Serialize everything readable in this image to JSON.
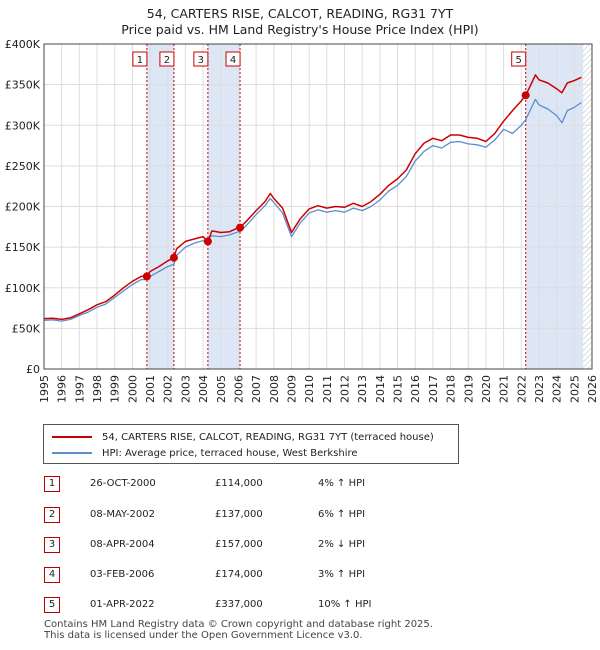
{
  "header": {
    "title": "54, CARTERS RISE, CALCOT, READING, RG31 7YT",
    "subtitle": "Price paid vs. HM Land Registry's House Price Index (HPI)"
  },
  "legend": {
    "property_label": "54, CARTERS RISE, CALCOT, READING, RG31 7YT (terraced house)",
    "hpi_label": "HPI: Average price, terraced house, West Berkshire"
  },
  "transactions": [
    {
      "num": "1",
      "date": "26-OCT-2000",
      "price": "£114,000",
      "hpi": "4% ↑ HPI"
    },
    {
      "num": "2",
      "date": "08-MAY-2002",
      "price": "£137,000",
      "hpi": "6% ↑ HPI"
    },
    {
      "num": "3",
      "date": "08-APR-2004",
      "price": "£157,000",
      "hpi": "2% ↓ HPI"
    },
    {
      "num": "4",
      "date": "03-FEB-2006",
      "price": "£174,000",
      "hpi": "3% ↑ HPI"
    },
    {
      "num": "5",
      "date": "01-APR-2022",
      "price": "£337,000",
      "hpi": "10% ↑ HPI"
    }
  ],
  "footer": {
    "line1": "Contains HM Land Registry data © Crown copyright and database right 2025.",
    "line2": "This data is licensed under the Open Government Licence v3.0."
  },
  "colors": {
    "property": "#cc0000",
    "hpi": "#5b8fcc",
    "band": "#dde6f5",
    "grid": "#dddddd",
    "marker_border": "#cc0000"
  },
  "chart_data": {
    "type": "line",
    "xlim": [
      1995,
      2026
    ],
    "ylim": [
      0,
      400000
    ],
    "x_ticks": [
      1995,
      1996,
      1997,
      1998,
      1999,
      2000,
      2001,
      2002,
      2003,
      2004,
      2005,
      2006,
      2007,
      2008,
      2009,
      2010,
      2011,
      2012,
      2013,
      2014,
      2015,
      2016,
      2017,
      2018,
      2019,
      2020,
      2021,
      2022,
      2023,
      2024,
      2025,
      2026
    ],
    "y_ticks": [
      {
        "value": 0,
        "label": "£0"
      },
      {
        "value": 50000,
        "label": "£50K"
      },
      {
        "value": 100000,
        "label": "£100K"
      },
      {
        "value": 150000,
        "label": "£150K"
      },
      {
        "value": 200000,
        "label": "£200K"
      },
      {
        "value": 250000,
        "label": "£250K"
      },
      {
        "value": 300000,
        "label": "£300K"
      },
      {
        "value": 350000,
        "label": "£350K"
      },
      {
        "value": 400000,
        "label": "£400K"
      }
    ],
    "grid": true,
    "shaded_ranges": [
      [
        2000.82,
        2002.35
      ],
      [
        2004.27,
        2006.09
      ],
      [
        2022.25,
        2025.5
      ]
    ],
    "sales": [
      {
        "label": "1",
        "x": 2000.82,
        "y": 114000
      },
      {
        "label": "2",
        "x": 2002.35,
        "y": 137000
      },
      {
        "label": "3",
        "x": 2004.27,
        "y": 157000
      },
      {
        "label": "4",
        "x": 2006.09,
        "y": 174000
      },
      {
        "label": "5",
        "x": 2022.25,
        "y": 337000
      }
    ],
    "series": [
      {
        "name": "54, CARTERS RISE, CALCOT, READING, RG31 7YT (terraced house)",
        "x": [
          1995,
          1995.5,
          1996,
          1996.5,
          1997,
          1997.5,
          1998,
          1998.5,
          1999,
          1999.5,
          2000,
          2000.5,
          2000.82,
          2001,
          2001.5,
          2002,
          2002.35,
          2002.5,
          2003,
          2003.5,
          2004,
          2004.27,
          2004.5,
          2005,
          2005.5,
          2006,
          2006.09,
          2006.5,
          2007,
          2007.5,
          2007.8,
          2008,
          2008.5,
          2009,
          2009.5,
          2010,
          2010.5,
          2011,
          2011.5,
          2012,
          2012.5,
          2013,
          2013.5,
          2014,
          2014.5,
          2015,
          2015.5,
          2016,
          2016.5,
          2017,
          2017.5,
          2018,
          2018.5,
          2019,
          2019.5,
          2020,
          2020.5,
          2021,
          2021.5,
          2022,
          2022.25,
          2022.5,
          2022.8,
          2023,
          2023.5,
          2024,
          2024.3,
          2024.6,
          2025,
          2025.4
        ],
        "y": [
          62000,
          62500,
          61000,
          63000,
          68000,
          73000,
          79000,
          83000,
          91000,
          100000,
          108000,
          114000,
          114000,
          120000,
          126000,
          133000,
          137000,
          148000,
          157000,
          160000,
          163000,
          157000,
          170000,
          168000,
          169000,
          174000,
          174000,
          183000,
          195000,
          206000,
          216000,
          210000,
          198000,
          168000,
          185000,
          197000,
          201000,
          198000,
          200000,
          199000,
          204000,
          200000,
          206000,
          215000,
          226000,
          234000,
          245000,
          265000,
          278000,
          284000,
          281000,
          288000,
          288000,
          285000,
          284000,
          280000,
          290000,
          305000,
          318000,
          330000,
          337000,
          348000,
          362000,
          356000,
          352000,
          345000,
          340000,
          352000,
          355000,
          359000
        ]
      },
      {
        "name": "HPI: Average price, terraced house, West Berkshire",
        "x": [
          1995,
          1995.5,
          1996,
          1996.5,
          1997,
          1997.5,
          1998,
          1998.5,
          1999,
          1999.5,
          2000,
          2000.5,
          2000.82,
          2001,
          2001.5,
          2002,
          2002.35,
          2002.5,
          2003,
          2003.5,
          2004,
          2004.27,
          2004.5,
          2005,
          2005.5,
          2006,
          2006.09,
          2006.5,
          2007,
          2007.5,
          2007.8,
          2008,
          2008.5,
          2009,
          2009.5,
          2010,
          2010.5,
          2011,
          2011.5,
          2012,
          2012.5,
          2013,
          2013.5,
          2014,
          2014.5,
          2015,
          2015.5,
          2016,
          2016.5,
          2017,
          2017.5,
          2018,
          2018.5,
          2019,
          2019.5,
          2020,
          2020.5,
          2021,
          2021.5,
          2022,
          2022.25,
          2022.5,
          2022.8,
          2023,
          2023.5,
          2024,
          2024.3,
          2024.6,
          2025,
          2025.4
        ],
        "y": [
          60000,
          60500,
          59000,
          61000,
          66000,
          70000,
          76000,
          80000,
          88000,
          96000,
          104000,
          110000,
          110000,
          114000,
          120000,
          126000,
          129000,
          140000,
          150000,
          155000,
          158000,
          160000,
          164000,
          163000,
          165000,
          169000,
          169000,
          178000,
          190000,
          201000,
          210000,
          205000,
          192000,
          163000,
          180000,
          192000,
          196000,
          193000,
          195000,
          193000,
          198000,
          195000,
          200000,
          208000,
          219000,
          226000,
          237000,
          256000,
          268000,
          275000,
          272000,
          279000,
          280000,
          277000,
          276000,
          273000,
          282000,
          295000,
          290000,
          300000,
          307000,
          318000,
          332000,
          325000,
          320000,
          312000,
          303000,
          318000,
          322000,
          328000
        ]
      }
    ]
  }
}
